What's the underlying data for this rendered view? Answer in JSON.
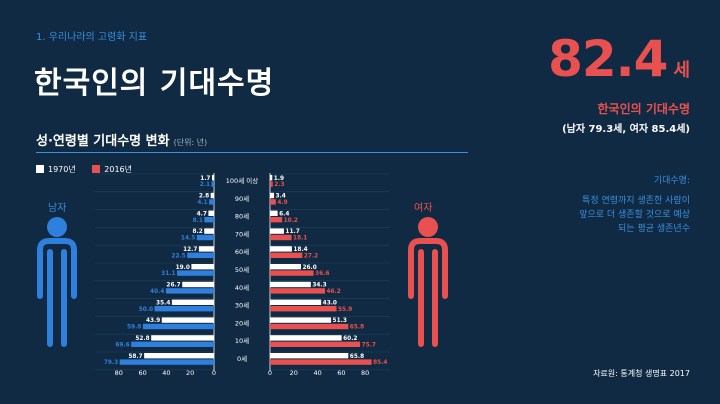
{
  "header": {
    "section": "1. 우리나라의 고령화 지표",
    "title": "한국인의 기대수명"
  },
  "headline": {
    "value": "82.4",
    "unit": "세",
    "label": "한국인의 기대수명",
    "sub": "(남자 79.3세, 여자 85.4세)"
  },
  "definition": {
    "title": "기대수명:",
    "lines": [
      "특정 연령까지 생존한 사람이",
      "앞으로 더 생존할 것으로 예상",
      "되는 평균 생존년수"
    ]
  },
  "source": "자료원: 통계청 생명표 2017",
  "colors": {
    "c1970": "#ffffff",
    "c2016_male": "#2f7fdc",
    "c2016_female": "#e8514f",
    "bg": "#0f2a42"
  },
  "chart_data": {
    "type": "bar",
    "title": "성·연령별 기대수명 변화",
    "unit_note": "(단위: 년)",
    "categories": [
      "100세 이상",
      "90세",
      "80세",
      "70세",
      "60세",
      "50세",
      "40세",
      "30세",
      "20세",
      "10세",
      "0세"
    ],
    "legend": [
      "1970년",
      "2016년"
    ],
    "panel_labels": {
      "male": "남자",
      "female": "여자"
    },
    "male": {
      "1970": [
        1.7,
        2.8,
        4.7,
        8.2,
        12.7,
        19.0,
        26.7,
        35.4,
        43.9,
        52.8,
        58.7
      ],
      "2016": [
        2.1,
        4.1,
        8.1,
        14.5,
        22.5,
        31.1,
        40.4,
        50.0,
        59.8,
        69.6,
        79.3
      ]
    },
    "female": {
      "1970": [
        1.9,
        3.4,
        6.4,
        11.7,
        18.4,
        26.0,
        34.3,
        43.0,
        51.3,
        60.2,
        65.8
      ],
      "2016": [
        2.3,
        4.9,
        10.2,
        18.1,
        27.2,
        36.6,
        46.2,
        55.9,
        65.8,
        75.7,
        85.4
      ]
    },
    "male_axis_ticks": [
      "80",
      "60",
      "40",
      "20",
      "0"
    ],
    "female_axis_ticks": [
      "0",
      "20",
      "40",
      "60",
      "80"
    ],
    "xlim": [
      0,
      80
    ],
    "grid": true
  }
}
